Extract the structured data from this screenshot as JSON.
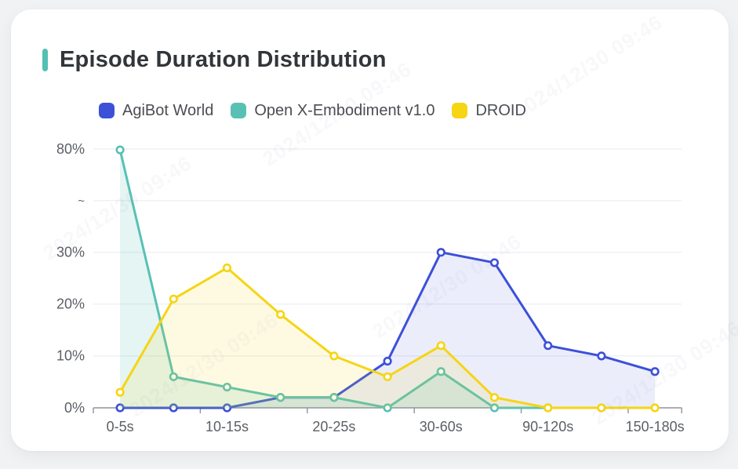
{
  "page": {
    "background_color": "#f1f2f4",
    "card_color": "#ffffff"
  },
  "header": {
    "title": "Episode Duration Distribution",
    "accent_color": "#53c0b3"
  },
  "legend": [
    {
      "label": "AgiBot World",
      "color": "#3c50d8"
    },
    {
      "label": "Open X-Embodiment v1.0",
      "color": "#58c1b4"
    },
    {
      "label": "DROID",
      "color": "#f6d513"
    }
  ],
  "watermark": {
    "text": "2024/12/30 09:46"
  },
  "chart_data": {
    "type": "line",
    "title": "Episode Duration Distribution",
    "x_axis": {
      "visible_labels": [
        "0-5s",
        "10-15s",
        "20-25s",
        "30-60s",
        "90-120s",
        "150-180s"
      ],
      "label_indices": [
        0,
        2,
        4,
        6,
        8,
        10
      ],
      "num_categories": 11
    },
    "y_axis": {
      "tick_labels": [
        "0%",
        "10%",
        "20%",
        "30%",
        "~",
        "80%"
      ],
      "tick_values": [
        0,
        10,
        20,
        30,
        null,
        80
      ],
      "break_between": [
        30,
        80
      ],
      "unit": "percent"
    },
    "grid": true,
    "legend_position": "top",
    "series": [
      {
        "name": "AgiBot World",
        "color": "#3c50d8",
        "fill_opacity": 0.1,
        "values": [
          0,
          0,
          0,
          2,
          2,
          9,
          30,
          28,
          12,
          10,
          7
        ]
      },
      {
        "name": "Open X-Embodiment v1.0",
        "color": "#58c1b4",
        "fill_opacity": 0.16,
        "values": [
          79.6,
          6,
          4,
          2,
          2,
          0,
          7,
          0,
          0,
          null,
          null
        ]
      },
      {
        "name": "DROID",
        "color": "#f6d513",
        "fill_opacity": 0.12,
        "values": [
          3,
          21,
          27,
          18,
          10,
          6,
          12,
          2,
          0,
          0,
          0
        ]
      }
    ]
  }
}
